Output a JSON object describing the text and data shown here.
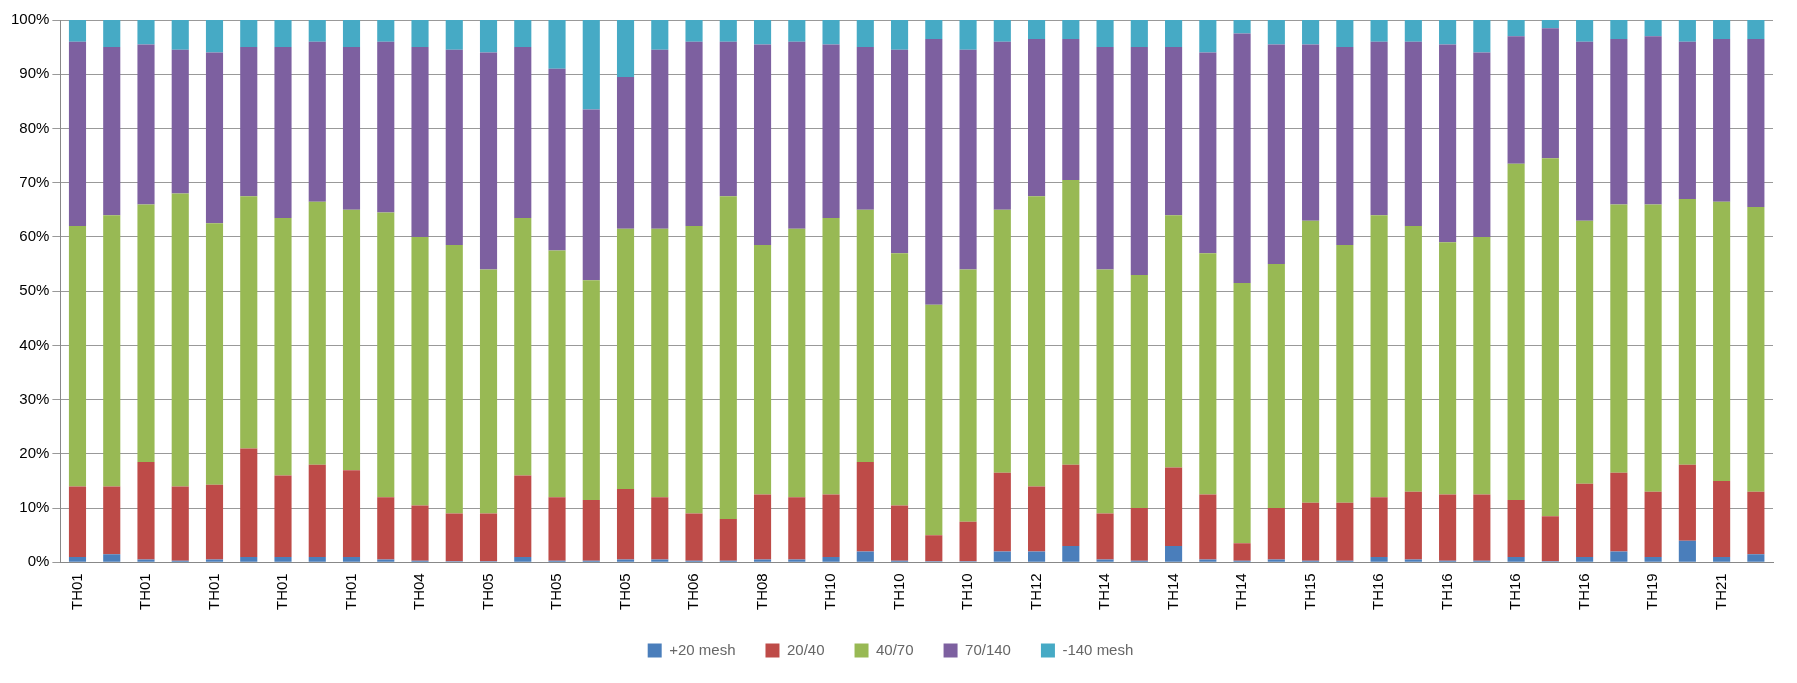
{
  "chart_data": {
    "type": "bar",
    "stacked": true,
    "grid": "y",
    "legend": "bottom",
    "categories": [
      "TH01",
      null,
      "TH01",
      null,
      "TH01",
      null,
      "TH01",
      null,
      "TH01",
      null,
      "TH04",
      null,
      "TH05",
      null,
      "TH05",
      null,
      "TH05",
      null,
      "TH06",
      null,
      "TH08",
      null,
      "TH10",
      null,
      "TH10",
      null,
      "TH10",
      null,
      "TH12",
      null,
      "TH14",
      null,
      "TH14",
      null,
      "TH14",
      null,
      "TH15",
      null,
      "TH16",
      null,
      "TH16",
      null,
      "TH16",
      null,
      "TH16",
      null,
      "TH19",
      null,
      "TH21",
      null
    ],
    "ylim": [
      0,
      100
    ],
    "yticks": [
      {
        "value": 0,
        "label": "0%"
      },
      {
        "value": 10,
        "label": "10%"
      },
      {
        "value": 20,
        "label": "20%"
      },
      {
        "value": 30,
        "label": "30%"
      },
      {
        "value": 40,
        "label": "40%"
      },
      {
        "value": 50,
        "label": "50%"
      },
      {
        "value": 60,
        "label": "60%"
      },
      {
        "value": 70,
        "label": "70%"
      },
      {
        "value": 80,
        "label": "80%"
      },
      {
        "value": 90,
        "label": "90%"
      },
      {
        "value": 100,
        "label": "100%"
      }
    ],
    "series": [
      {
        "name": "+20 mesh",
        "color": "#4a7ebb",
        "values": [
          1,
          1.5,
          0.5,
          0.3,
          0.5,
          1,
          1,
          1,
          1,
          0.5,
          0.3,
          0.2,
          0.2,
          1,
          0.3,
          0.3,
          0.5,
          0.5,
          0.3,
          0.3,
          0.5,
          0.5,
          1,
          2,
          0.3,
          0.2,
          0.2,
          2,
          2,
          3,
          0.5,
          0.3,
          3,
          0.5,
          0.3,
          0.5,
          0.3,
          0.3,
          1,
          0.5,
          0.3,
          0.3,
          1,
          0.2,
          1,
          2,
          1,
          4,
          1,
          1.5
        ]
      },
      {
        "name": "20/40",
        "color": "#be4b48",
        "values": [
          13,
          12.5,
          18,
          13.7,
          13.8,
          20,
          15,
          17,
          16,
          11.5,
          10.2,
          8.8,
          8.8,
          15,
          11.7,
          11.2,
          13,
          11.5,
          8.7,
          7.7,
          12,
          11.5,
          11.5,
          16.5,
          10.2,
          4.8,
          7.3,
          14.5,
          12,
          15,
          8.5,
          9.7,
          14.5,
          12,
          3.2,
          9.5,
          10.7,
          10.7,
          11,
          12.5,
          12.2,
          12.2,
          10.5,
          8.3,
          13.5,
          14.5,
          12,
          14,
          14,
          11.5
        ]
      },
      {
        "name": "40/70",
        "color": "#98b954",
        "values": [
          48,
          50,
          47.5,
          54,
          48.2,
          46.5,
          47.5,
          48.5,
          48,
          52.5,
          49.5,
          49.5,
          45,
          47.5,
          45.5,
          40.5,
          48,
          49.5,
          53,
          59.5,
          46,
          49.5,
          51,
          46.5,
          46.5,
          42.5,
          46.5,
          48.5,
          53.5,
          52.5,
          45,
          43,
          46.5,
          44.5,
          48,
          45,
          52,
          47.5,
          52,
          49,
          46.5,
          47.5,
          62,
          66,
          48.5,
          49.5,
          53,
          49,
          51.5,
          52.5
        ]
      },
      {
        "name": "70/140",
        "color": "#7d60a0",
        "values": [
          34,
          31,
          29.5,
          26.5,
          31.5,
          27.5,
          31.5,
          29.5,
          30,
          31.5,
          35,
          36,
          40,
          31.5,
          33.5,
          31.5,
          28,
          33,
          34,
          28.5,
          37,
          34.5,
          32,
          30,
          37.5,
          49,
          40.5,
          31,
          29,
          26,
          41,
          42,
          31,
          37,
          46,
          40.5,
          32.5,
          36.5,
          32,
          34,
          36.5,
          34,
          23.5,
          24,
          33,
          30.5,
          31,
          29,
          30,
          31
        ]
      },
      {
        "name": "-140 mesh",
        "color": "#46aac5",
        "values": [
          4,
          5,
          4.5,
          5.5,
          6,
          5,
          5,
          4,
          5,
          4,
          5,
          5.5,
          6,
          5,
          9,
          16.5,
          10.5,
          5.5,
          4,
          4,
          4.5,
          4,
          4.5,
          5,
          5.5,
          3.5,
          5.5,
          4,
          3.5,
          3.5,
          5,
          5,
          5,
          6,
          2.5,
          4.5,
          4.5,
          5,
          4,
          4,
          4.5,
          6,
          3,
          1.5,
          4,
          3.5,
          3,
          4,
          3.5,
          3.5
        ]
      }
    ]
  }
}
